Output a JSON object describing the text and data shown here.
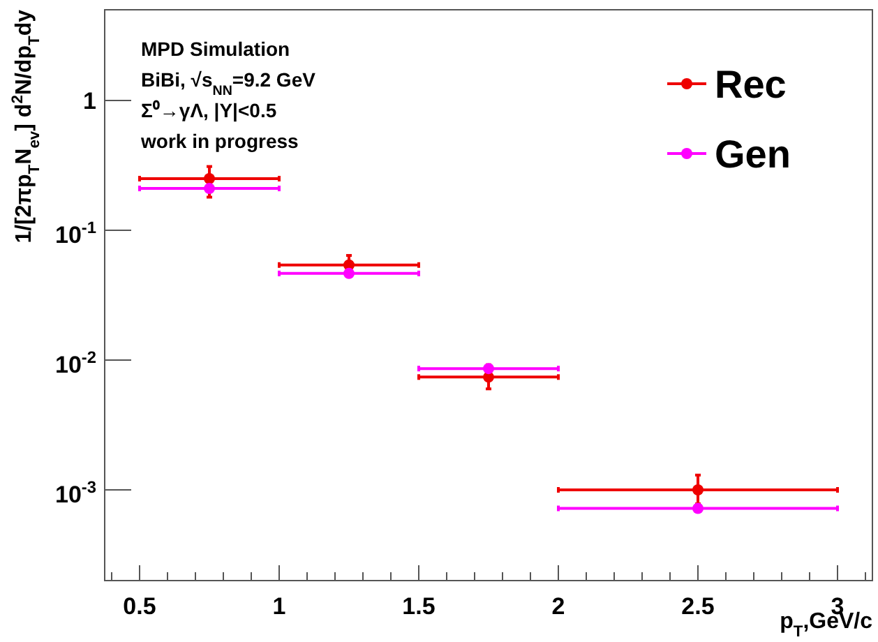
{
  "chart_data": {
    "type": "scatter",
    "xlabel": "p$_{T}$,GeV/c",
    "ylabel": "1/[2πp$_{T}$N$_{ev}$] d$^{2}$N/dp$_{T}$dy",
    "annotations": [
      "MPD Simulation",
      "BiBi,   √s$_{NN}$=9.2 GeV",
      "Σ⁰→γΛ, |Y|<0.5",
      "work in progress"
    ],
    "x": [
      0.75,
      1.25,
      1.75,
      2.5
    ],
    "series": [
      {
        "name": "Rec",
        "color": "#ee0000",
        "values": [
          0.25,
          0.054,
          0.0074,
          0.001
        ],
        "errors": [
          [
            0.18,
            0.31
          ],
          [
            0.046,
            0.064
          ],
          [
            0.006,
            0.0092
          ],
          [
            0.00078,
            0.0013
          ]
        ],
        "xerrors": [
          [
            0.5,
            1
          ],
          [
            1,
            1.5
          ],
          [
            1.5,
            2
          ],
          [
            2,
            3
          ]
        ]
      },
      {
        "name": "Gen",
        "color": "#ff00ff",
        "values": [
          0.21,
          0.0465,
          0.0086,
          0.00072
        ],
        "xerrors": [
          [
            0.5,
            1
          ],
          [
            1,
            1.5
          ],
          [
            1.5,
            2
          ],
          [
            2,
            3
          ]
        ]
      }
    ],
    "log": "y",
    "marker": "circle",
    "legend": "top right",
    "grid": false,
    "xlim": [
      0.375,
      3.125
    ],
    "ylim": [
      0.0002,
      5
    ],
    "xticks": [
      {
        "value": 0.4,
        "label": null
      },
      0.5,
      {
        "value": 0.6,
        "label": null
      },
      {
        "value": 0.7,
        "label": null
      },
      {
        "value": 0.8,
        "label": null
      },
      {
        "value": 0.9,
        "label": null
      },
      1,
      {
        "value": 1.1,
        "label": null
      },
      {
        "value": 1.2,
        "label": null
      },
      {
        "value": 1.3,
        "label": null
      },
      {
        "value": 1.4,
        "label": null
      },
      1.5,
      {
        "value": 1.6,
        "label": null
      },
      {
        "value": 1.7,
        "label": null
      },
      {
        "value": 1.8,
        "label": null
      },
      {
        "value": 1.9,
        "label": null
      },
      2,
      {
        "value": 2.1,
        "label": null
      },
      {
        "value": 2.2,
        "label": null
      },
      {
        "value": 2.3,
        "label": null
      },
      {
        "value": 2.4,
        "label": null
      },
      2.5,
      {
        "value": 2.6,
        "label": null
      },
      {
        "value": 2.7,
        "label": null
      },
      {
        "value": 2.8,
        "label": null
      },
      {
        "value": 2.9,
        "label": null
      },
      3,
      {
        "value": 3.1,
        "label": null
      }
    ],
    "yticks": [
      {
        "value": 0.001,
        "label": "10$^{-3}$"
      },
      {
        "value": 0.01,
        "label": "10$^{-2}$"
      },
      {
        "value": 0.1,
        "label": "10$^{-1}$"
      },
      1
    ]
  }
}
